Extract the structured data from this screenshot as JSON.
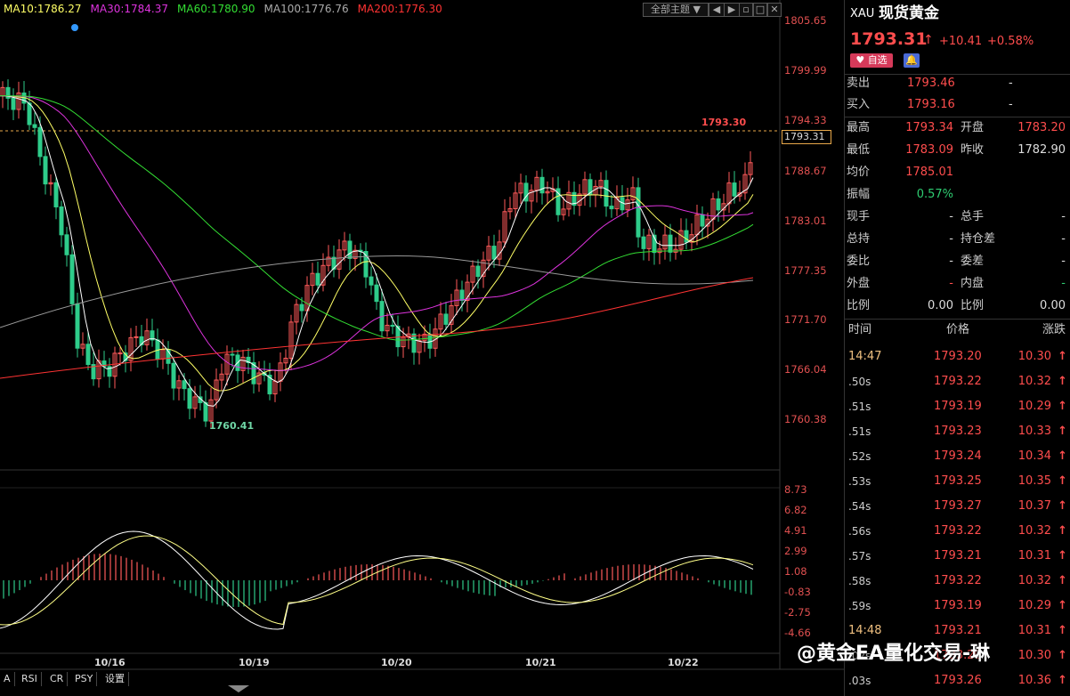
{
  "ma_legend": [
    {
      "label": "MA10:1786.27",
      "color": "#ffff66"
    },
    {
      "label": "MA30:1784.37",
      "color": "#dd33dd"
    },
    {
      "label": "MA60:1780.90",
      "color": "#33dd33"
    },
    {
      "label": "MA100:1776.76",
      "color": "#aaaaaa"
    },
    {
      "label": "MA200:1776.30",
      "color": "#ff3333"
    }
  ],
  "toolbar": {
    "theme_label": "全部主题"
  },
  "price_axis": [
    "1805.65",
    "1799.99",
    "1794.33",
    "1788.67",
    "1783.01",
    "1777.35",
    "1771.70",
    "1766.04",
    "1760.38"
  ],
  "osc_axis": [
    "8.73",
    "6.82",
    "4.91",
    "2.99",
    "1.08",
    "-0.83",
    "-2.75",
    "-4.66"
  ],
  "date_labels": [
    "10/16",
    "10/19",
    "10/20",
    "10/21",
    "10/22"
  ],
  "annotations": {
    "high_mark": "1793.30",
    "low_mark": "1760.41",
    "current_tag": "1793.31"
  },
  "bottom_tabs": [
    "A",
    "RSI",
    "CR",
    "PSY",
    "设置"
  ],
  "quote": {
    "symbol": "XAU",
    "name": "现货黄金",
    "price": "1793.31",
    "change": "+10.41",
    "pct": "+0.58%",
    "fav_label": "自选",
    "ask_label": "卖出",
    "ask": "1793.46",
    "ask_vol": "-",
    "bid_label": "买入",
    "bid": "1793.16",
    "bid_vol": "-",
    "stats": [
      {
        "l1": "最高",
        "v1": "1793.34",
        "l2": "开盘",
        "v2": "1783.20",
        "c1": "red",
        "c2": "red"
      },
      {
        "l1": "最低",
        "v1": "1783.09",
        "l2": "昨收",
        "v2": "1782.90",
        "c1": "red",
        "c2": "wht"
      },
      {
        "l1": "均价",
        "v1": "1785.01",
        "l2": "",
        "v2": "",
        "c1": "red",
        "c2": "wht"
      },
      {
        "l1": "振幅",
        "v1": "0.57%",
        "l2": "",
        "v2": "",
        "c1": "grn",
        "c2": "wht"
      },
      {
        "l1": "现手",
        "v1": "-",
        "l2": "总手",
        "v2": "-",
        "c1": "wht",
        "c2": "wht"
      },
      {
        "l1": "总持",
        "v1": "-",
        "l2": "持仓差",
        "v2": "-",
        "c1": "wht",
        "c2": "wht"
      },
      {
        "l1": "委比",
        "v1": "-",
        "l2": "委差",
        "v2": "-",
        "c1": "wht",
        "c2": "wht"
      },
      {
        "l1": "外盘",
        "v1": "-",
        "l2": "内盘",
        "v2": "-",
        "c1": "red",
        "c2": "grn"
      },
      {
        "l1": "比例",
        "v1": "0.00",
        "l2": "比例",
        "v2": "0.00",
        "c1": "wht",
        "c2": "wht"
      }
    ],
    "ticks_header": {
      "time": "时间",
      "price": "价格",
      "chg": "涨跌"
    },
    "ticks": [
      {
        "t": "14:47",
        "p": "1793.20",
        "c": "10.30"
      },
      {
        "t": ".50s",
        "p": "1793.22",
        "c": "10.32"
      },
      {
        "t": ".51s",
        "p": "1793.19",
        "c": "10.29"
      },
      {
        "t": ".51s",
        "p": "1793.23",
        "c": "10.33"
      },
      {
        "t": ".52s",
        "p": "1793.24",
        "c": "10.34"
      },
      {
        "t": ".53s",
        "p": "1793.25",
        "c": "10.35"
      },
      {
        "t": ".54s",
        "p": "1793.27",
        "c": "10.37"
      },
      {
        "t": ".56s",
        "p": "1793.22",
        "c": "10.32"
      },
      {
        "t": ".57s",
        "p": "1793.21",
        "c": "10.31"
      },
      {
        "t": ".58s",
        "p": "1793.22",
        "c": "10.32"
      },
      {
        "t": ".59s",
        "p": "1793.19",
        "c": "10.29"
      },
      {
        "t": "14:48",
        "p": "1793.21",
        "c": "10.31"
      },
      {
        "t": ".02s",
        "p": "1793.20",
        "c": "10.30"
      },
      {
        "t": ".03s",
        "p": "1793.26",
        "c": "10.36"
      }
    ]
  },
  "watermark": "@黄金EA量化交易-琳"
}
